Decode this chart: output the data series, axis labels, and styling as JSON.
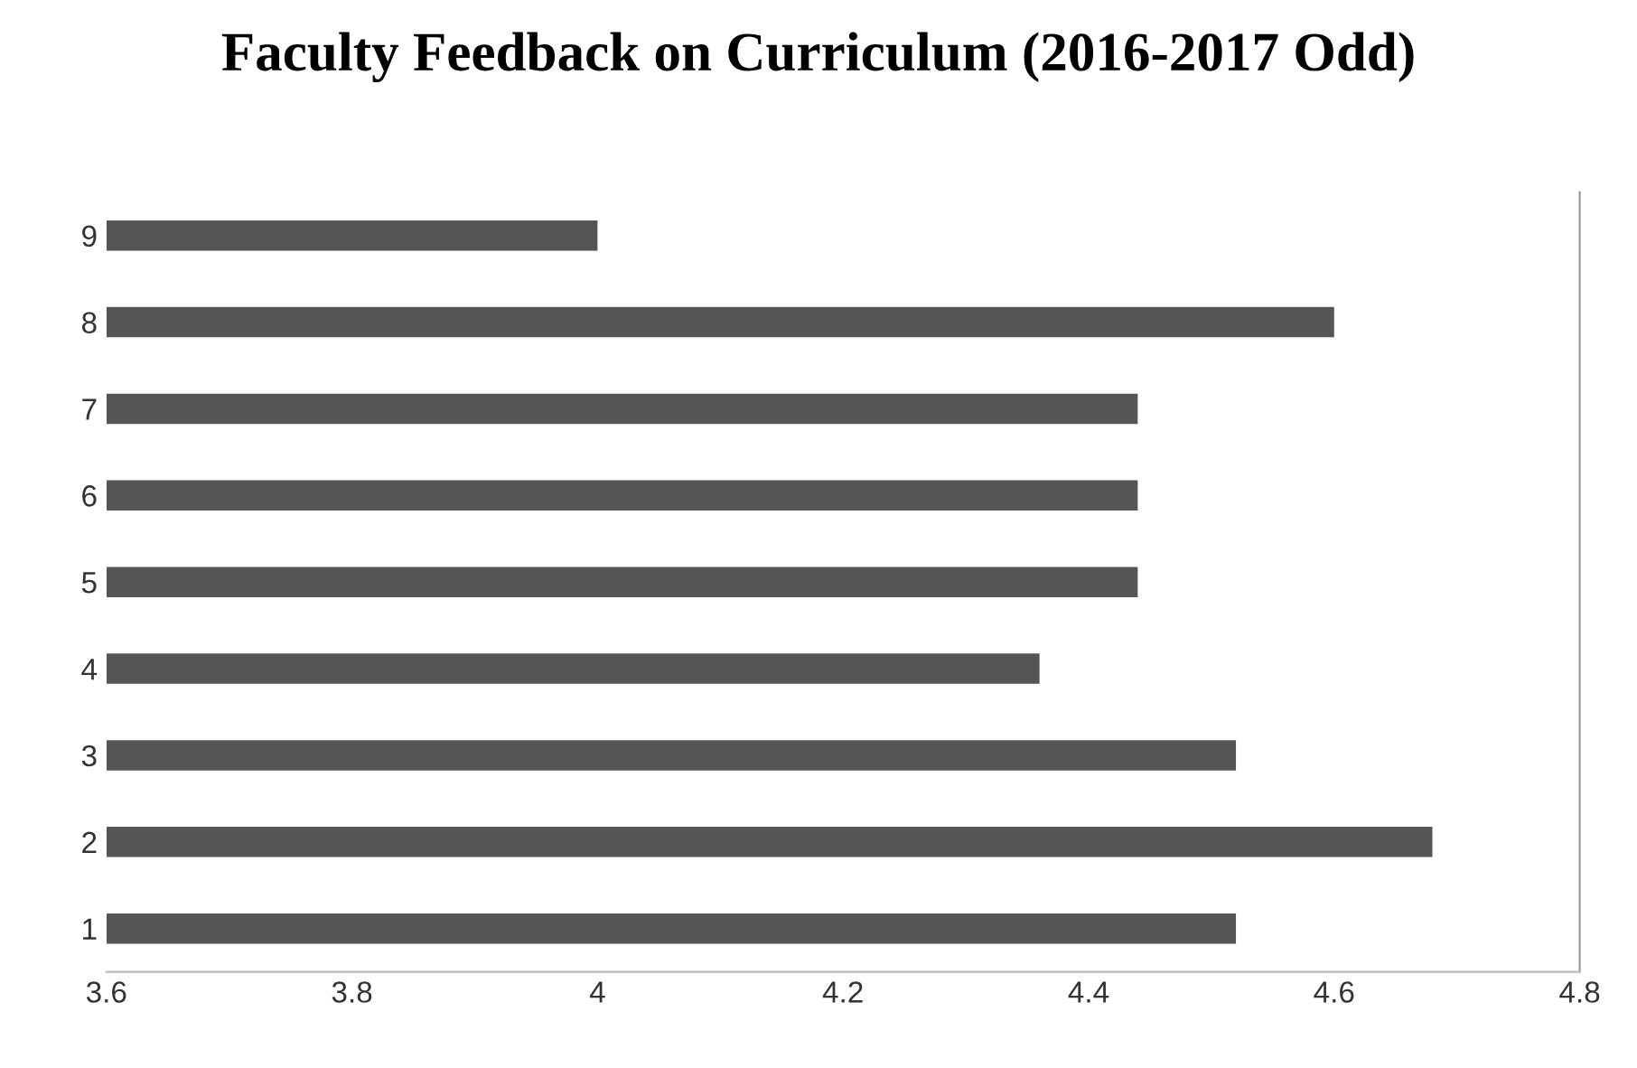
{
  "chart_data": {
    "type": "bar",
    "orientation": "horizontal",
    "title": "Faculty Feedback on Curriculum (2016-2017 Odd)",
    "categories": [
      "9",
      "8",
      "7",
      "6",
      "5",
      "4",
      "3",
      "2",
      "1"
    ],
    "values": [
      4.0,
      4.6,
      4.44,
      4.44,
      4.44,
      4.36,
      4.52,
      4.68,
      4.52
    ],
    "color": "#555555",
    "xlim": [
      3.6,
      4.8
    ],
    "xticks": [
      3.6,
      3.8,
      4,
      4.2,
      4.4,
      4.6,
      4.8
    ],
    "grid": false
  }
}
